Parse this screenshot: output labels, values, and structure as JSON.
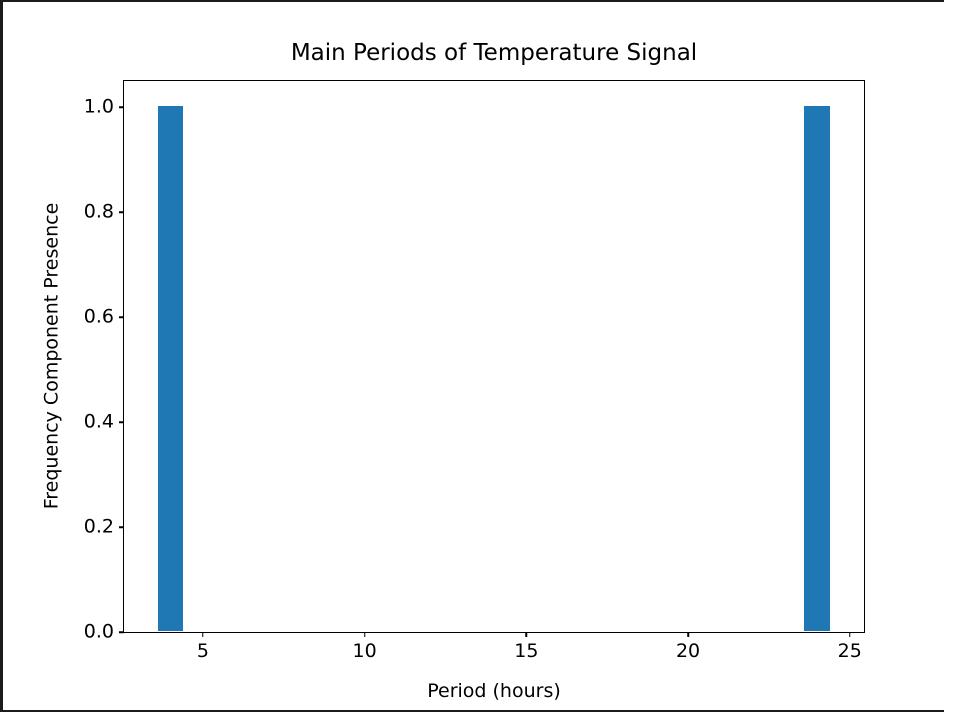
{
  "window": {
    "edge_color": "#1c1c1c",
    "background": "#ffffff"
  },
  "chart_data": {
    "type": "bar",
    "title": "Main Periods of Temperature Signal",
    "xlabel": "Period (hours)",
    "ylabel": "Frequency Component Presence",
    "x": [
      4,
      24
    ],
    "values": [
      1.0,
      1.0
    ],
    "bar_width": 0.8,
    "bar_color": "#1f77b4",
    "xlim": [
      2.56,
      25.44
    ],
    "ylim": [
      0,
      1.05
    ],
    "xticks": [
      {
        "value": 5,
        "label": "5"
      },
      {
        "value": 10,
        "label": "10"
      },
      {
        "value": 15,
        "label": "15"
      },
      {
        "value": 20,
        "label": "20"
      },
      {
        "value": 25,
        "label": "25"
      }
    ],
    "yticks": [
      {
        "value": 0.0,
        "label": "0.0"
      },
      {
        "value": 0.2,
        "label": "0.2"
      },
      {
        "value": 0.4,
        "label": "0.4"
      },
      {
        "value": 0.6,
        "label": "0.6"
      },
      {
        "value": 0.8,
        "label": "0.8"
      },
      {
        "value": 1.0,
        "label": "1.0"
      }
    ],
    "grid": false,
    "legend": "none",
    "plot_background": "#ffffff",
    "spine_color": "#000000"
  }
}
